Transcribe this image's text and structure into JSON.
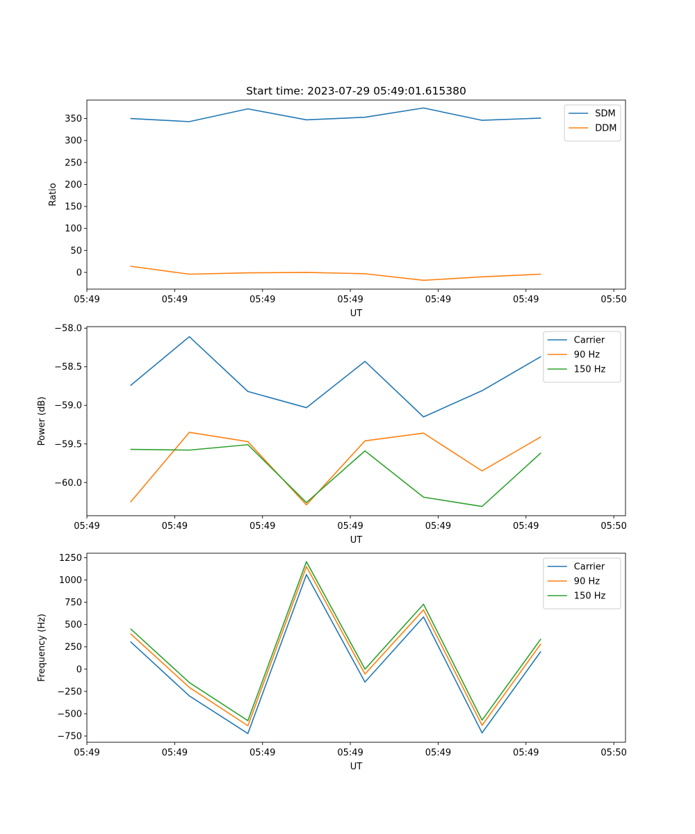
{
  "chart_data": [
    {
      "type": "line",
      "title": "Start time: 2023-07-29 05:49:01.615380",
      "xlabel": "UT",
      "ylabel": "Ratio",
      "x": [
        0,
        1,
        2,
        3,
        4,
        5,
        6,
        7
      ],
      "xlim": [
        -0.75,
        8.45
      ],
      "ylim": [
        -38,
        392
      ],
      "xticks": [
        -0.75,
        0.75,
        2.25,
        3.75,
        5.25,
        6.75,
        8.25
      ],
      "xtick_labels": [
        "05:49",
        "05:49",
        "05:49",
        "05:49",
        "05:49",
        "05:49",
        "05:50"
      ],
      "yticks": [
        0,
        50,
        100,
        150,
        200,
        250,
        300,
        350
      ],
      "ytick_labels": [
        "0",
        "50",
        "100",
        "150",
        "200",
        "250",
        "300",
        "350"
      ],
      "legend_position": "top-right",
      "series": [
        {
          "name": "SDM",
          "color": "#1f77b4",
          "values": [
            350,
            343,
            372,
            347,
            353,
            374,
            346,
            351
          ]
        },
        {
          "name": "DDM",
          "color": "#ff7f0e",
          "values": [
            14,
            -4,
            -1,
            0,
            -3,
            -18,
            -10,
            -4
          ]
        }
      ]
    },
    {
      "type": "line",
      "title": "",
      "xlabel": "UT",
      "ylabel": "Power (dB)",
      "x": [
        0,
        1,
        2,
        3,
        4,
        5,
        6,
        7
      ],
      "xlim": [
        -0.75,
        8.45
      ],
      "ylim": [
        -60.43,
        -57.98
      ],
      "xticks": [
        -0.75,
        0.75,
        2.25,
        3.75,
        5.25,
        6.75,
        8.25
      ],
      "xtick_labels": [
        "05:49",
        "05:49",
        "05:49",
        "05:49",
        "05:49",
        "05:49",
        "05:50"
      ],
      "yticks": [
        -60.0,
        -59.5,
        -59.0,
        -58.5,
        -58.0
      ],
      "ytick_labels": [
        "−60.0",
        "−59.5",
        "−59.0",
        "−58.5",
        "−58.0"
      ],
      "legend_position": "top-right",
      "series": [
        {
          "name": "Carrier",
          "color": "#1f77b4",
          "values": [
            -58.74,
            -58.11,
            -58.82,
            -59.03,
            -58.43,
            -59.15,
            -58.81,
            -58.37
          ]
        },
        {
          "name": "90 Hz",
          "color": "#ff7f0e",
          "values": [
            -60.25,
            -59.35,
            -59.47,
            -60.29,
            -59.46,
            -59.36,
            -59.85,
            -59.41
          ]
        },
        {
          "name": "150 Hz",
          "color": "#2ca02c",
          "values": [
            -59.57,
            -59.58,
            -59.51,
            -60.26,
            -59.59,
            -60.19,
            -60.31,
            -59.62
          ]
        }
      ]
    },
    {
      "type": "line",
      "title": "",
      "xlabel": "UT",
      "ylabel": "Frequency (Hz)",
      "x": [
        0,
        1,
        2,
        3,
        4,
        5,
        6,
        7
      ],
      "xlim": [
        -0.75,
        8.45
      ],
      "ylim": [
        -820,
        1300
      ],
      "xticks": [
        -0.75,
        0.75,
        2.25,
        3.75,
        5.25,
        6.75,
        8.25
      ],
      "xtick_labels": [
        "05:49",
        "05:49",
        "05:49",
        "05:49",
        "05:49",
        "05:49",
        "05:50"
      ],
      "yticks": [
        -750,
        -500,
        -250,
        0,
        250,
        500,
        750,
        1000,
        1250
      ],
      "ytick_labels": [
        "−750",
        "−500",
        "−250",
        "0",
        "250",
        "500",
        "750",
        "1000",
        "1250"
      ],
      "legend_position": "top-right",
      "series": [
        {
          "name": "Carrier",
          "color": "#1f77b4",
          "values": [
            305,
            -300,
            -722,
            1060,
            -145,
            585,
            -715,
            195
          ]
        },
        {
          "name": "90 Hz",
          "color": "#ff7f0e",
          "values": [
            395,
            -205,
            -635,
            1150,
            -55,
            665,
            -630,
            280
          ]
        },
        {
          "name": "150 Hz",
          "color": "#2ca02c",
          "values": [
            450,
            -150,
            -578,
            1205,
            0,
            728,
            -572,
            335
          ]
        }
      ]
    }
  ]
}
